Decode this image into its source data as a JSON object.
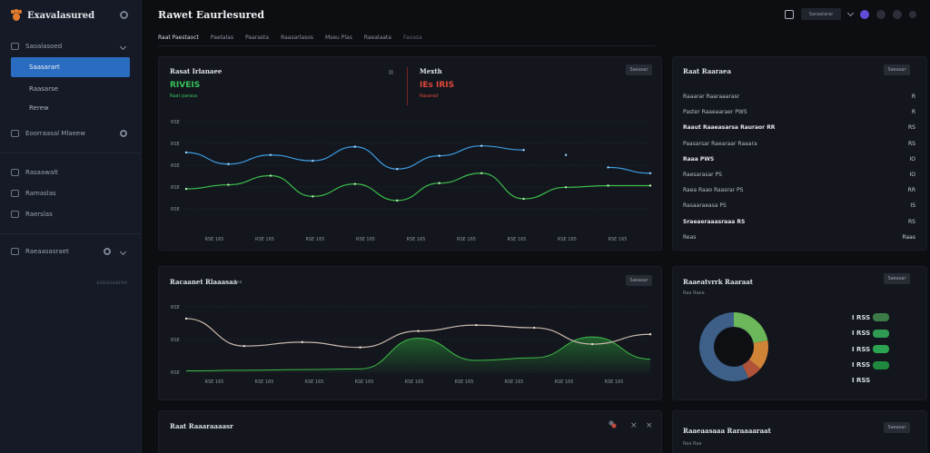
{
  "app": {
    "name": "Exavalasured"
  },
  "sidebar": {
    "group1": {
      "label": "Saoalasoed"
    },
    "items": [
      {
        "label": "Saasarart"
      },
      {
        "label": "Raasarse"
      },
      {
        "label": "Rerew"
      }
    ],
    "group2": {
      "label": "Eoorraasal Mlaeew"
    },
    "group3": [
      {
        "label": "Rasaawalt"
      },
      {
        "label": "Ramaslas"
      },
      {
        "label": "Raerslas"
      }
    ],
    "group4": {
      "label": "Raeaasasraet"
    },
    "footer": "aseasaareo"
  },
  "header": {
    "title": "Rawet Eaurlesured",
    "tabs": [
      "Raat Paestaoct",
      "Paetalas",
      "Paarasta",
      "Raasarlasos",
      "Mseu Plas",
      "Raealaata",
      "Faoasa"
    ],
    "pill": "Saraatarar"
  },
  "revenue_panel": {
    "title": "Rasat Irlanaee",
    "value": "RIVEIS",
    "sub": "Raat parasa",
    "value_color": "#36c25a"
  },
  "risk_panel": {
    "title": "Mexth",
    "value": "IEs IRIS",
    "sub": "Rasarad",
    "value_color": "#e0473a"
  },
  "btn_label": "Saeasar",
  "chart1": {
    "type": "line",
    "y_ticks": [
      "RSE",
      "RSE",
      "RSE",
      "RSE",
      "RSE"
    ],
    "x_ticks": [
      "RSE 165",
      "RSE 165",
      "RSE 165",
      "RSE 165",
      "RSE 165",
      "RSE 165",
      "RSE 165",
      "RSE 165",
      "RSE 165"
    ],
    "series": [
      {
        "color": "#3e9be0",
        "values": [
          0.68,
          0.54,
          0.65,
          0.58,
          0.75,
          0.48,
          0.64,
          0.76,
          0.71,
          0.65,
          0.5,
          0.43
        ]
      },
      {
        "color": "#3cbf4c",
        "values": [
          0.24,
          0.29,
          0.4,
          0.15,
          0.3,
          0.1,
          0.31,
          0.43,
          0.12,
          0.26,
          0.28,
          0.28
        ]
      }
    ]
  },
  "accounts_panel": {
    "title": "Raat Raaraea",
    "rows": [
      {
        "label": "Raaarar Raaraaarasr",
        "value": "R"
      },
      {
        "label": "Paster Raaeaaraer   PWS",
        "value": "R"
      },
      {
        "label": "Raaut Raaeasarsa Rauraor RR",
        "value": "RS"
      },
      {
        "label": "Paasarsar Raearaar Raaara",
        "value": "RS"
      },
      {
        "label": "Raaa PWS",
        "value": "IO"
      },
      {
        "label": "Raesarasar   PS",
        "value": "IO"
      },
      {
        "label": "Raea Raao Raasrar   PS",
        "value": "RR"
      },
      {
        "label": "Rasaaraeasa   PS",
        "value": "IS"
      },
      {
        "label": "Sraeaeraaasraaa   RS",
        "value": "RS"
      },
      {
        "label": "Reas",
        "value": "Raas"
      }
    ]
  },
  "chart2": {
    "type": "area",
    "title": "Racaanet Rlaaasaa",
    "badge": "Rea",
    "y_ticks": [
      "RSE",
      "RSE",
      "RSE"
    ],
    "x_ticks": [
      "RSE 165",
      "RSE 165",
      "RSE 165",
      "RSE 165",
      "RSE 165",
      "RSE 165",
      "RSE 165",
      "RSE 165",
      "RSE 165"
    ],
    "line": {
      "color": "#c9b9ac",
      "values": [
        0.82,
        0.4,
        0.46,
        0.38,
        0.63,
        0.72,
        0.68,
        0.43,
        0.58
      ]
    },
    "area": {
      "color": "#2e9c3d",
      "values": [
        0.02,
        0.03,
        0.04,
        0.05,
        0.52,
        0.18,
        0.22,
        0.54,
        0.2
      ]
    }
  },
  "donut_panel": {
    "title": "Raaeatvrrk Raaraat",
    "sub": "Raa Raea",
    "chart_data": {
      "type": "pie",
      "values": [
        22,
        14,
        7,
        57
      ],
      "colors": [
        "#6bb75a",
        "#d08436",
        "#b0523a",
        "#3d5f88"
      ]
    },
    "legend": [
      "I RSS",
      "I RSS",
      "I RSS",
      "I RSS",
      "I RSS"
    ],
    "legend_colors": [
      "#3c7a47",
      "#2f9b52",
      "#2aa44f",
      "#1f8a3e",
      "#1f8a3e"
    ]
  },
  "bottom_left": {
    "title": "Raat Raaaraaaasr"
  },
  "bottom_right": {
    "title": "Raaeaasaaa Raraaaaraat",
    "sub": "Rea Raa"
  }
}
